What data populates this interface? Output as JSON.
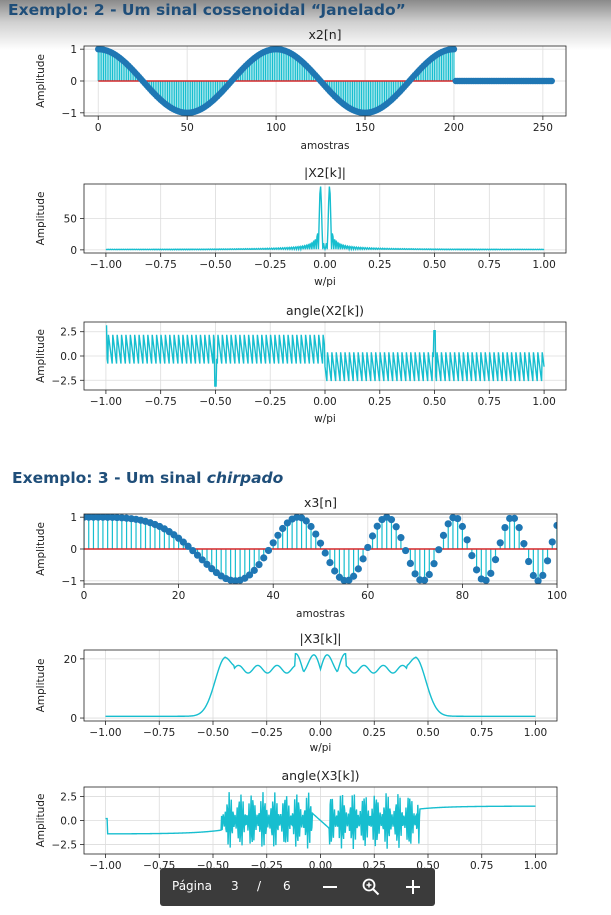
{
  "document": {
    "heading1": {
      "prefix": "Exemplo: 2 - Um sinal cossenoidal “Janelado”"
    },
    "heading2": {
      "prefix": "Exemplo: 3 -  Um sinal ",
      "italic": "chirpado"
    }
  },
  "toolbar": {
    "page_label": "Página",
    "current_page": "3",
    "separator": "/",
    "total_pages": "6"
  },
  "colors": {
    "heading": "#1f4e79",
    "signal": "#17becf",
    "stem_marker": "#1f77b4",
    "baseline": "#d62728"
  },
  "chart_data": [
    {
      "type": "stem",
      "title": "x2[n]",
      "xlabel": "amostras",
      "ylabel": "Amplitude",
      "xlim": [
        -8,
        263
      ],
      "ylim": [
        -1.1,
        1.1
      ],
      "xticks": [
        0,
        50,
        100,
        150,
        200,
        250
      ],
      "yticks": [
        -1,
        0,
        1
      ],
      "signal": "x[n] = cos(2π n / 100) for n = 0..200, 0 for n = 201..255"
    },
    {
      "type": "line",
      "title": "|X2[k]|",
      "xlabel": "w/pi",
      "ylabel": "Amplitude",
      "xlim": [
        -1.1,
        1.1
      ],
      "ylim": [
        -5,
        105
      ],
      "xticks": [
        -1.0,
        -0.75,
        -0.5,
        -0.25,
        0.0,
        0.25,
        0.5,
        0.75,
        1.0
      ],
      "yticks": [
        0,
        50
      ],
      "peaks": [
        {
          "x": -0.02,
          "y": 100
        },
        {
          "x": 0.02,
          "y": 100
        }
      ]
    },
    {
      "type": "line",
      "title": "angle(X2[k])",
      "xlabel": "w/pi",
      "ylabel": "Amplitude",
      "xlim": [
        -1.1,
        1.1
      ],
      "ylim": [
        -3.5,
        3.5
      ],
      "xticks": [
        -1.0,
        -0.75,
        -0.5,
        -0.25,
        0.0,
        0.25,
        0.5,
        0.75,
        1.0
      ],
      "yticks": [
        -2.5,
        0.0,
        2.5
      ]
    },
    {
      "type": "stem",
      "title": "x3[n]",
      "xlabel": "amostras",
      "ylabel": "Amplitude",
      "xlim": [
        0,
        100
      ],
      "ylim": [
        -1.1,
        1.1
      ],
      "xticks": [
        0,
        20,
        40,
        60,
        80,
        100
      ],
      "yticks": [
        -1,
        0,
        1
      ],
      "signal": "chirp x[n] = cos(π n² / 1024), n = 0..100"
    },
    {
      "type": "line",
      "title": "|X3[k]|",
      "xlabel": "w/pi",
      "ylabel": "Amplitude",
      "xlim": [
        -1.1,
        1.1
      ],
      "ylim": [
        -1,
        23
      ],
      "xticks": [
        -1.0,
        -0.75,
        -0.5,
        -0.25,
        0.0,
        0.25,
        0.5,
        0.75,
        1.0
      ],
      "yticks": [
        0,
        20
      ]
    },
    {
      "type": "line",
      "title": "angle(X3[k])",
      "xlabel": "w/pi",
      "ylabel": "Amplitude",
      "xlim": [
        -1.1,
        1.1
      ],
      "ylim": [
        -3.5,
        3.5
      ],
      "xticks": [
        -1.0,
        -0.75,
        -0.5,
        -0.25,
        0.0,
        0.25,
        0.5,
        0.75,
        1.0
      ],
      "yticks": [
        -2.5,
        0.0,
        2.5
      ]
    }
  ]
}
